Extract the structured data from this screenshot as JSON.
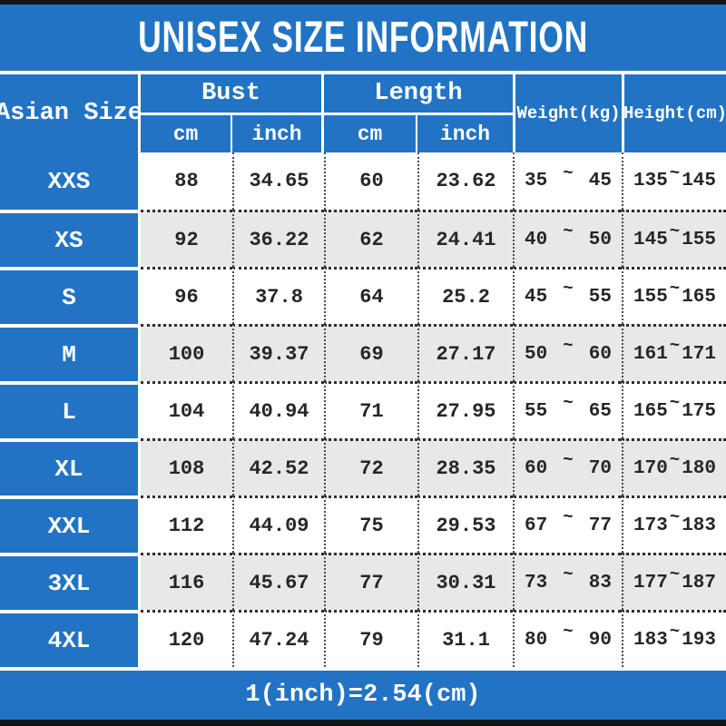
{
  "title": "UNISEX SIZE INFORMATION",
  "header": {
    "size_column": "Asian Size",
    "bust_group": "Bust",
    "length_group": "Length",
    "weight_column": "Weight(kg)",
    "height_column": "Height(cm)",
    "unit_cm": "cm",
    "unit_inch": "inch"
  },
  "symbols": {
    "range_tilde": "~"
  },
  "rows": [
    {
      "size": "XXS",
      "bust_cm": "88",
      "bust_inch": "34.65",
      "length_cm": "60",
      "length_inch": "23.62",
      "weight_min": "35",
      "weight_max": "45",
      "height_min": "135",
      "height_max": "145"
    },
    {
      "size": "XS",
      "bust_cm": "92",
      "bust_inch": "36.22",
      "length_cm": "62",
      "length_inch": "24.41",
      "weight_min": "40",
      "weight_max": "50",
      "height_min": "145",
      "height_max": "155"
    },
    {
      "size": "S",
      "bust_cm": "96",
      "bust_inch": "37.8",
      "length_cm": "64",
      "length_inch": "25.2",
      "weight_min": "45",
      "weight_max": "55",
      "height_min": "155",
      "height_max": "165"
    },
    {
      "size": "M",
      "bust_cm": "100",
      "bust_inch": "39.37",
      "length_cm": "69",
      "length_inch": "27.17",
      "weight_min": "50",
      "weight_max": "60",
      "height_min": "161",
      "height_max": "171"
    },
    {
      "size": "L",
      "bust_cm": "104",
      "bust_inch": "40.94",
      "length_cm": "71",
      "length_inch": "27.95",
      "weight_min": "55",
      "weight_max": "65",
      "height_min": "165",
      "height_max": "175"
    },
    {
      "size": "XL",
      "bust_cm": "108",
      "bust_inch": "42.52",
      "length_cm": "72",
      "length_inch": "28.35",
      "weight_min": "60",
      "weight_max": "70",
      "height_min": "170",
      "height_max": "180"
    },
    {
      "size": "XXL",
      "bust_cm": "112",
      "bust_inch": "44.09",
      "length_cm": "75",
      "length_inch": "29.53",
      "weight_min": "67",
      "weight_max": "77",
      "height_min": "173",
      "height_max": "183"
    },
    {
      "size": "3XL",
      "bust_cm": "116",
      "bust_inch": "45.67",
      "length_cm": "77",
      "length_inch": "30.31",
      "weight_min": "73",
      "weight_max": "83",
      "height_min": "177",
      "height_max": "187"
    },
    {
      "size": "4XL",
      "bust_cm": "120",
      "bust_inch": "47.24",
      "length_cm": "79",
      "length_inch": "31.1",
      "weight_min": "80",
      "weight_max": "90",
      "height_min": "183",
      "height_max": "193"
    }
  ],
  "footer": {
    "conversion_note": "1(inch)=2.54(cm)"
  },
  "colors": {
    "accent_blue": "#2273c3",
    "alt_row_gray": "#e8e8e8",
    "frame_black": "#141414",
    "cell_text": "#262626"
  },
  "chart_data": {
    "type": "table",
    "title": "UNISEX SIZE INFORMATION",
    "columns": [
      "Asian Size",
      "Bust cm",
      "Bust inch",
      "Length cm",
      "Length inch",
      "Weight(kg)",
      "Height(cm)"
    ],
    "rows": [
      [
        "XXS",
        "88",
        "34.65",
        "60",
        "23.62",
        "35~45",
        "135~145"
      ],
      [
        "XS",
        "92",
        "36.22",
        "62",
        "24.41",
        "40~50",
        "145~155"
      ],
      [
        "S",
        "96",
        "37.8",
        "64",
        "25.2",
        "45~55",
        "155~165"
      ],
      [
        "M",
        "100",
        "39.37",
        "69",
        "27.17",
        "50~60",
        "161~171"
      ],
      [
        "L",
        "104",
        "40.94",
        "71",
        "27.95",
        "55~65",
        "165~175"
      ],
      [
        "XL",
        "108",
        "42.52",
        "72",
        "28.35",
        "60~70",
        "170~180"
      ],
      [
        "XXL",
        "112",
        "44.09",
        "75",
        "29.53",
        "67~77",
        "173~183"
      ],
      [
        "3XL",
        "116",
        "45.67",
        "77",
        "30.31",
        "73~83",
        "177~187"
      ],
      [
        "4XL",
        "120",
        "47.24",
        "79",
        "31.1",
        "80~90",
        "183~193"
      ]
    ],
    "note": "1(inch)=2.54(cm)",
    "layout": "header spans: Bust and Length each split into cm/inch sub-columns; alternating white/gray data rows"
  }
}
